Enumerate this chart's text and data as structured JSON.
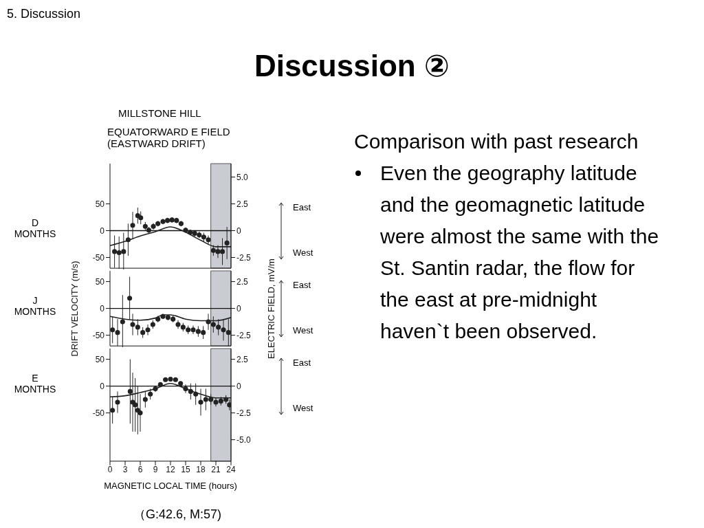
{
  "chart_data": [
    {
      "type": "line",
      "title": "D MONTHS",
      "xlim": [
        0,
        24
      ],
      "xticks": [
        0,
        3,
        6,
        9,
        12,
        15,
        18,
        21,
        24
      ],
      "ylim": [
        -70,
        125
      ],
      "yticks": [
        50,
        0,
        -50
      ],
      "y2lim": [
        -3.5,
        6.25
      ],
      "y2ticks": [
        {
          "value": 5,
          "label": "5.0"
        },
        2.5,
        0,
        -2.5
      ],
      "tick_labels": "y",
      "annotations": [
        "East",
        "West"
      ],
      "bands": [
        {
          "axis": "x",
          "from": 20,
          "to": 24,
          "color": "#c9ccd3"
        }
      ],
      "ref_lines": [
        {
          "axis": "y",
          "value": 0
        }
      ],
      "series": [
        {
          "type": "scatter",
          "marker": "circle",
          "color": "#222222",
          "x": [
            0.9,
            1.8,
            2.7,
            3.6,
            4.5,
            5.5,
            6.1,
            7,
            7.7,
            8.6,
            9.5,
            10.5,
            11.4,
            12.3,
            13.2,
            14.1,
            15,
            15.9,
            16.8,
            17.7,
            18.6,
            19.5,
            20.5,
            21.4,
            22.3,
            23.2
          ],
          "values": [
            -39,
            -41,
            -39,
            -17,
            10,
            28,
            24,
            8,
            1,
            8,
            13,
            17,
            19,
            20,
            19,
            13,
            1,
            -3,
            -5,
            -8,
            -12,
            -17,
            -37,
            -39,
            -39,
            -23
          ],
          "errors": [
            30,
            30,
            35,
            30,
            25,
            15,
            12,
            8,
            6,
            6,
            5,
            5,
            5,
            5,
            5,
            5,
            5,
            5,
            6,
            6,
            8,
            8,
            10,
            12,
            25,
            30
          ]
        },
        {
          "type": "line",
          "color": "#222222",
          "x": [
            0,
            3,
            6,
            9,
            12,
            15,
            18,
            21,
            24
          ],
          "values": [
            -28,
            -20,
            -10,
            -2,
            7,
            -3,
            -18,
            -30,
            -30
          ]
        }
      ]
    },
    {
      "type": "line",
      "title": "J MONTHS",
      "ylabel": "DRIFT VELOCITY (m/s)",
      "y2label": "ELECTRIC FIELD, mV/m",
      "xlim": [
        0,
        24
      ],
      "xticks": [
        0,
        3,
        6,
        9,
        12,
        15,
        18,
        21,
        24
      ],
      "ylim": [
        -70,
        70
      ],
      "yticks": [
        50,
        0,
        -50
      ],
      "y2lim": [
        -3.5,
        3.5
      ],
      "y2ticks": [
        2.5,
        0,
        -2.5
      ],
      "tick_labels": "y",
      "annotations": [
        "East",
        "West"
      ],
      "bands": [
        {
          "axis": "x",
          "from": 20,
          "to": 24,
          "color": "#c9ccd3"
        }
      ],
      "ref_lines": [
        {
          "axis": "y",
          "value": 0
        }
      ],
      "series": [
        {
          "type": "scatter",
          "marker": "circle",
          "color": "#222222",
          "x": [
            0.5,
            1.5,
            2.5,
            3.9,
            4.5,
            5.5,
            6.5,
            7.5,
            8.5,
            9.5,
            10.5,
            11.5,
            12.5,
            13.5,
            14.5,
            15.5,
            16.5,
            17.5,
            18.5,
            19.5,
            20.5,
            21.5,
            22.5,
            23.5
          ],
          "values": [
            -40,
            -45,
            -25,
            19,
            -30,
            -35,
            -45,
            -40,
            -30,
            -20,
            -15,
            -17,
            -20,
            -30,
            -35,
            -40,
            -40,
            -43,
            -45,
            -25,
            -30,
            -35,
            -40,
            -45
          ],
          "errors": [
            25,
            25,
            50,
            40,
            20,
            15,
            10,
            10,
            8,
            6,
            5,
            5,
            6,
            8,
            8,
            8,
            8,
            10,
            12,
            15,
            15,
            15,
            20,
            25
          ]
        },
        {
          "type": "line",
          "color": "#222222",
          "x": [
            0,
            3,
            6,
            9,
            10.5,
            12,
            15,
            18,
            21,
            24
          ],
          "values": [
            -15,
            -20,
            -22,
            -18,
            -12,
            -12,
            -20,
            -23,
            -23,
            -17
          ]
        }
      ]
    },
    {
      "type": "line",
      "title": "E MONTHS",
      "xlabel": "MAGNETIC LOCAL TIME (hours)",
      "xlim": [
        0,
        24
      ],
      "xticks": [
        0,
        3,
        6,
        9,
        12,
        15,
        18,
        21,
        24
      ],
      "ylim": [
        -140,
        70
      ],
      "yticks": [
        50,
        0,
        -50
      ],
      "y2lim": [
        -7,
        3.5
      ],
      "y2ticks": [
        2.5,
        0,
        -2.5,
        {
          "value": -5,
          "label": "-5.0"
        }
      ],
      "annotations": [
        "East",
        "West"
      ],
      "bands": [
        {
          "axis": "x",
          "from": 20,
          "to": 24,
          "color": "#c9ccd3"
        }
      ],
      "ref_lines": [
        {
          "axis": "y",
          "value": 0
        }
      ],
      "series": [
        {
          "type": "scatter",
          "marker": "circle",
          "color": "#222222",
          "x": [
            0.5,
            1.5,
            4,
            4.5,
            5,
            5.5,
            6,
            7,
            8,
            9,
            10,
            11,
            12,
            13,
            14,
            15,
            16,
            17,
            18,
            19,
            20,
            21,
            22,
            23,
            23.7
          ],
          "values": [
            -45,
            -30,
            -10,
            -30,
            -35,
            -45,
            -50,
            -25,
            -15,
            -5,
            3,
            12,
            13,
            12,
            5,
            -5,
            -10,
            -15,
            -30,
            -25,
            -25,
            -30,
            -28,
            -25,
            -35
          ],
          "errors": [
            25,
            20,
            60,
            55,
            50,
            45,
            35,
            15,
            10,
            6,
            4,
            3,
            3,
            3,
            4,
            8,
            15,
            20,
            25,
            20,
            10,
            8,
            8,
            8,
            10
          ]
        },
        {
          "type": "line",
          "color": "#222222",
          "x": [
            0,
            3,
            6,
            9,
            12,
            15,
            18,
            21,
            24
          ],
          "values": [
            -20,
            -18,
            -12,
            -5,
            5,
            -5,
            -15,
            -22,
            -22
          ]
        }
      ]
    },
    {
      "type": "other",
      "title": "Discussion ②",
      "subtitle": "5.  Discussion",
      "annotations": [
        "MILLSTONE HILL",
        "EQUATORWARD E FIELD",
        "(EASTWARD DRIFT)",
        "（G:42.6, M:57)",
        "Comparison with past research",
        "Even the geography latitude and the geomagnetic latitude were almost the same with the St. Santin radar, the flow for the east at pre-midnight haven`t been observed."
      ]
    }
  ]
}
